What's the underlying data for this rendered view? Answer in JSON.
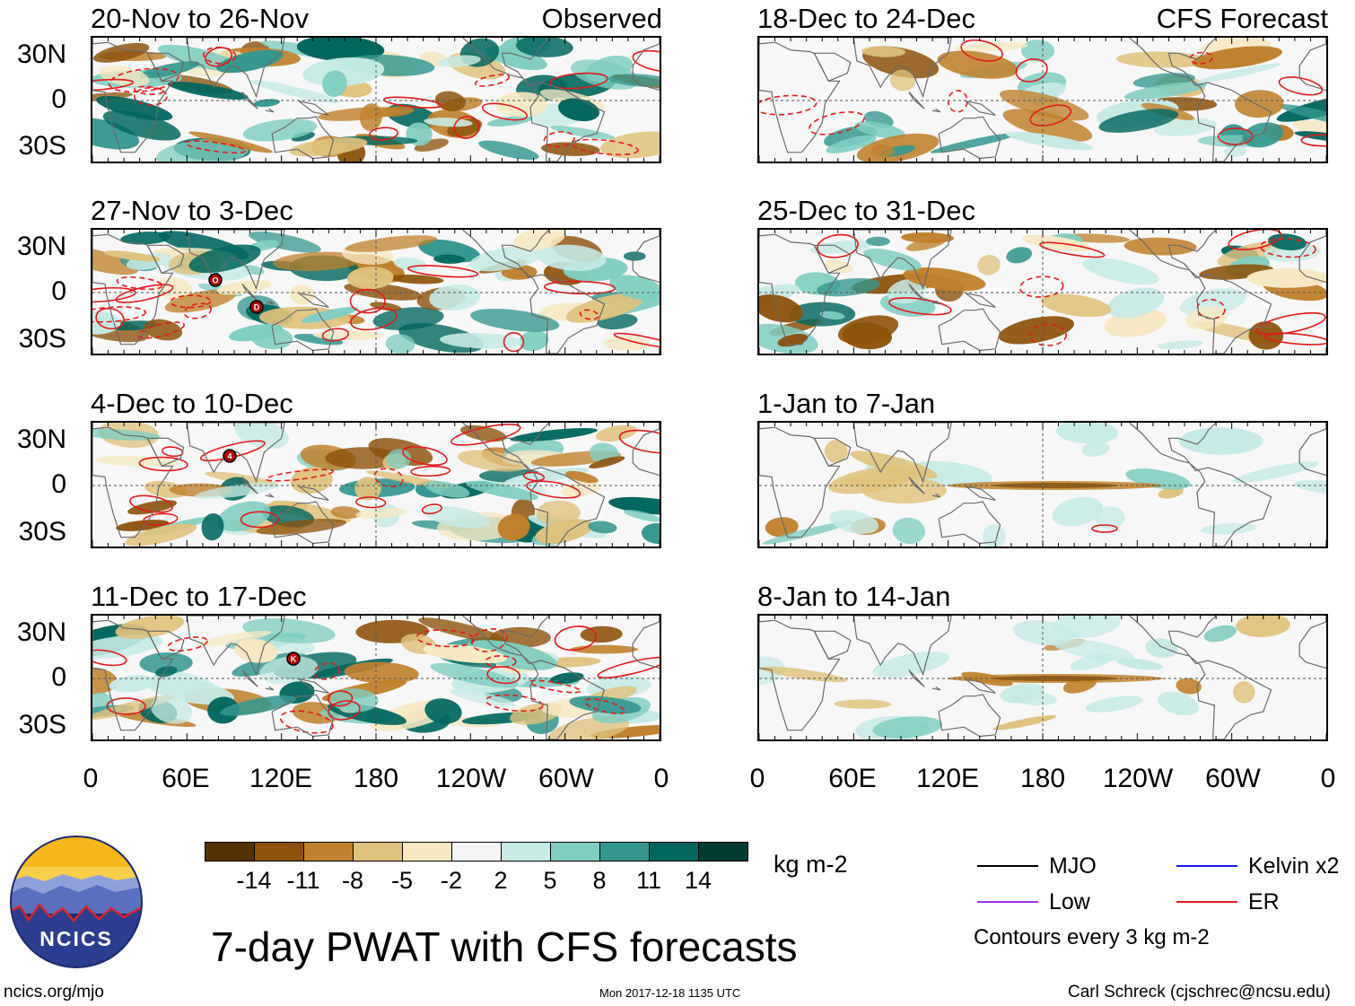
{
  "observed_label": "Observed",
  "forecast_label": "CFS Forecast",
  "panels_left": [
    {
      "title": "20-Nov to 26-Nov"
    },
    {
      "title": "27-Nov to 3-Dec"
    },
    {
      "title": "4-Dec to 10-Dec"
    },
    {
      "title": "11-Dec to 17-Dec"
    }
  ],
  "panels_right": [
    {
      "title": "18-Dec to 24-Dec"
    },
    {
      "title": "25-Dec to 31-Dec"
    },
    {
      "title": "1-Jan to 7-Jan"
    },
    {
      "title": "8-Jan to 14-Jan"
    }
  ],
  "lat_ticks": [
    "30N",
    "0",
    "30S"
  ],
  "lon_ticks": [
    "0",
    "60E",
    "120E",
    "180",
    "120W",
    "60W",
    "0"
  ],
  "colorbar": {
    "unit": "kg m-2",
    "tick_labels": [
      "-14",
      "-11",
      "-8",
      "-5",
      "-2",
      "2",
      "5",
      "8",
      "11",
      "14"
    ],
    "colors": [
      "#543005",
      "#8c510a",
      "#bf812d",
      "#dfc27d",
      "#f6e8c3",
      "#f5f5f5",
      "#c7eae5",
      "#80cdc1",
      "#35978f",
      "#01665e",
      "#003c30"
    ]
  },
  "legend": {
    "items": [
      {
        "label": "MJO",
        "color": "#000000"
      },
      {
        "label": "Kelvin x2",
        "color": "#1a1aff"
      },
      {
        "label": "Low",
        "color": "#9b30ff"
      },
      {
        "label": "ER",
        "color": "#e31a1c"
      }
    ],
    "note": "Contours every 3 kg m-2"
  },
  "title": "7-day PWAT with CFS forecasts",
  "logo_text": "NCICS",
  "footer": {
    "url": "ncics.org/mjo",
    "timestamp": "Mon 2017-12-18 1135 UTC",
    "credit": "Carl Schreck (cjschrec@ncsu.edu)"
  },
  "storm_markers": [
    "O",
    "D",
    "4",
    "K"
  ]
}
